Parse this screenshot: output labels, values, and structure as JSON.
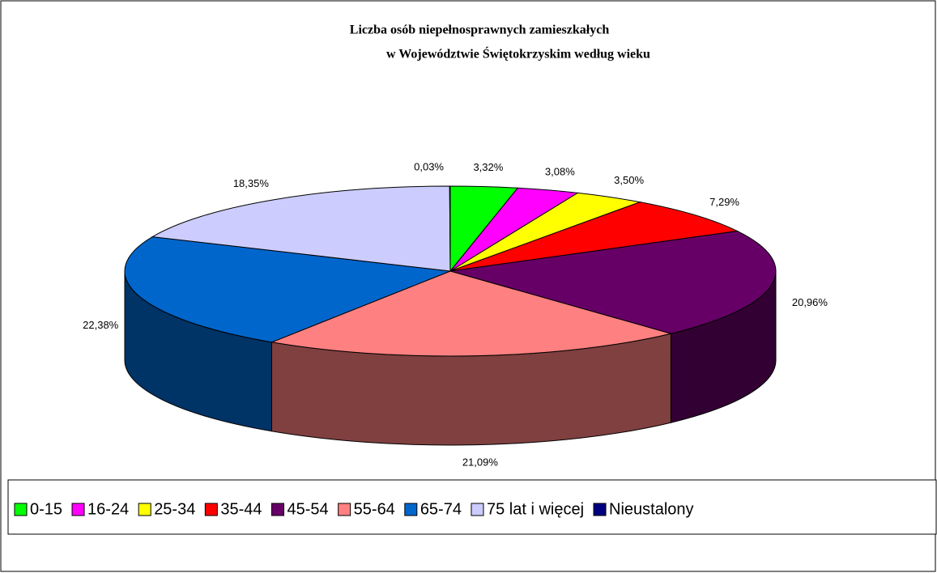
{
  "chart_data": {
    "type": "pie3d",
    "title": [
      "Liczba osób niepełnosprawnych zamieszkałych",
      "w Województwie Świętokrzyskim według wieku"
    ],
    "categories": [
      "0-15",
      "16-24",
      "25-34",
      "35-44",
      "45-54",
      "55-64",
      "65-74",
      "75 lat i więcej",
      "Nieustalony"
    ],
    "values": [
      3.32,
      3.08,
      3.5,
      7.29,
      20.96,
      21.09,
      22.38,
      18.35,
      0.03
    ],
    "value_labels": [
      "3,32%",
      "3,08%",
      "3,50%",
      "7,29%",
      "20,96%",
      "21,09%",
      "22,38%",
      "18,35%",
      "0,03%"
    ],
    "colors": [
      "#00ff00",
      "#ff00ff",
      "#ffff00",
      "#ff0000",
      "#660066",
      "#ff8080",
      "#0066cc",
      "#ccccff",
      "#000080"
    ],
    "legend": "bottom"
  }
}
